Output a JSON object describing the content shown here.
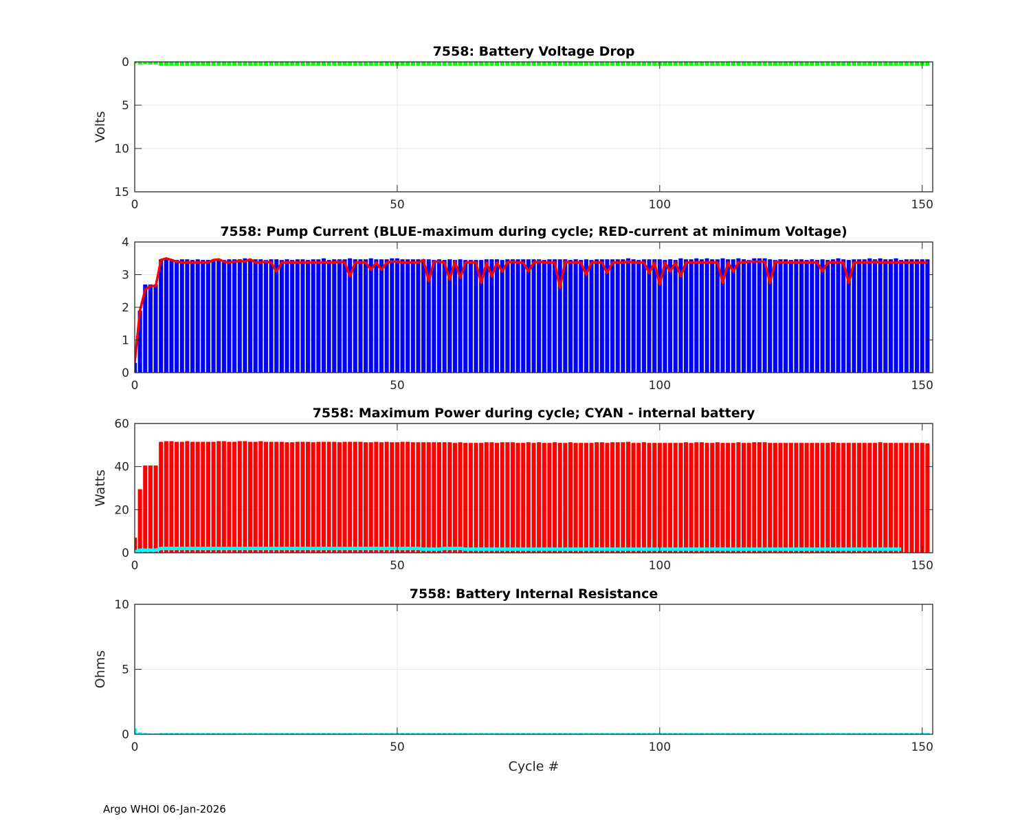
{
  "footer": "Argo WHOI 06-Jan-2026",
  "chart_data": [
    {
      "type": "bar",
      "title": "7558: Battery Voltage Drop",
      "xlabel": "",
      "ylabel": "Volts",
      "xlim": [
        0,
        152
      ],
      "ylim": [
        0,
        15
      ],
      "y_reversed": true,
      "xticks": [
        "0",
        "50",
        "100",
        "150"
      ],
      "yticks": [
        "0",
        "5",
        "10",
        "15"
      ],
      "grid": true,
      "series": [
        {
          "name": "voltage drop",
          "color": "#00ff00",
          "x_start": 0,
          "values": [
            0.2,
            0.3,
            0.25,
            0.3,
            0.3,
            0.45,
            0.45,
            0.45,
            0.45,
            0.45,
            0.45,
            0.45,
            0.45,
            0.45,
            0.45,
            0.45,
            0.45,
            0.45,
            0.45,
            0.45,
            0.45,
            0.45,
            0.45,
            0.45,
            0.45,
            0.45,
            0.45,
            0.45,
            0.45,
            0.45,
            0.45,
            0.45,
            0.45,
            0.45,
            0.45,
            0.45,
            0.45,
            0.45,
            0.45,
            0.45,
            0.45,
            0.45,
            0.45,
            0.45,
            0.45,
            0.45,
            0.45,
            0.45,
            0.45,
            0.45,
            0.45,
            0.45,
            0.45,
            0.45,
            0.45,
            0.45,
            0.45,
            0.45,
            0.45,
            0.45,
            0.45,
            0.45,
            0.45,
            0.45,
            0.45,
            0.45,
            0.45,
            0.45,
            0.45,
            0.45,
            0.45,
            0.45,
            0.45,
            0.45,
            0.45,
            0.45,
            0.45,
            0.45,
            0.45,
            0.45,
            0.45,
            0.45,
            0.45,
            0.45,
            0.45,
            0.45,
            0.45,
            0.45,
            0.45,
            0.45,
            0.45,
            0.45,
            0.45,
            0.45,
            0.45,
            0.45,
            0.45,
            0.45,
            0.45,
            0.45,
            0.45,
            0.45,
            0.45,
            0.45,
            0.45,
            0.45,
            0.45,
            0.45,
            0.45,
            0.45,
            0.45,
            0.45,
            0.45,
            0.45,
            0.45,
            0.45,
            0.45,
            0.45,
            0.45,
            0.45,
            0.45,
            0.45,
            0.45,
            0.45,
            0.45,
            0.45,
            0.45,
            0.45,
            0.45,
            0.45,
            0.45,
            0.45,
            0.45,
            0.45,
            0.45,
            0.45,
            0.45,
            0.45,
            0.45,
            0.45,
            0.45,
            0.45,
            0.45,
            0.45,
            0.45,
            0.45,
            0.45,
            0.45,
            0.45,
            0.45,
            0.45,
            0.45
          ]
        }
      ]
    },
    {
      "type": "bar",
      "title": "7558: Pump Current (BLUE-maximum during cycle; RED-current at minimum Voltage)",
      "xlabel": "",
      "ylabel": "",
      "xlim": [
        0,
        152
      ],
      "ylim": [
        0,
        4
      ],
      "xticks": [
        "0",
        "50",
        "100",
        "150"
      ],
      "yticks": [
        "0",
        "1",
        "2",
        "3",
        "4"
      ],
      "grid": true,
      "series": [
        {
          "name": "maximum during cycle",
          "kind": "bar",
          "color": "#0000ff",
          "x_start": 0,
          "values": [
            0.3,
            1.9,
            2.7,
            2.7,
            2.7,
            3.47,
            3.5,
            3.47,
            3.45,
            3.47,
            3.47,
            3.45,
            3.47,
            3.45,
            3.45,
            3.47,
            3.47,
            3.45,
            3.47,
            3.47,
            3.47,
            3.5,
            3.47,
            3.47,
            3.47,
            3.45,
            3.47,
            3.47,
            3.45,
            3.47,
            3.45,
            3.47,
            3.47,
            3.45,
            3.47,
            3.47,
            3.5,
            3.45,
            3.47,
            3.47,
            3.47,
            3.5,
            3.47,
            3.47,
            3.47,
            3.5,
            3.47,
            3.47,
            3.47,
            3.5,
            3.5,
            3.47,
            3.47,
            3.47,
            3.47,
            3.47,
            3.47,
            3.45,
            3.47,
            3.45,
            3.47,
            3.45,
            3.47,
            3.45,
            3.45,
            3.45,
            3.45,
            3.47,
            3.47,
            3.47,
            3.45,
            3.47,
            3.47,
            3.47,
            3.47,
            3.47,
            3.47,
            3.47,
            3.45,
            3.47,
            3.47,
            3.47,
            3.47,
            3.45,
            3.47,
            3.45,
            3.47,
            3.45,
            3.47,
            3.47,
            3.47,
            3.47,
            3.47,
            3.47,
            3.5,
            3.47,
            3.45,
            3.47,
            3.47,
            3.47,
            3.47,
            3.45,
            3.47,
            3.45,
            3.5,
            3.47,
            3.47,
            3.5,
            3.47,
            3.5,
            3.47,
            3.47,
            3.5,
            3.47,
            3.47,
            3.5,
            3.47,
            3.45,
            3.5,
            3.5,
            3.5,
            3.47,
            3.45,
            3.47,
            3.47,
            3.45,
            3.47,
            3.47,
            3.45,
            3.47,
            3.45,
            3.47,
            3.45,
            3.47,
            3.5,
            3.47,
            3.45,
            3.47,
            3.47,
            3.47,
            3.5,
            3.47,
            3.5,
            3.47,
            3.47,
            3.5,
            3.45,
            3.47,
            3.47,
            3.47,
            3.47,
            3.47
          ]
        },
        {
          "name": "current at minimum voltage",
          "kind": "line",
          "color": "#ff0000",
          "x_start": 0,
          "values": [
            0.3,
            1.9,
            2.55,
            2.65,
            2.65,
            3.45,
            3.5,
            3.45,
            3.4,
            3.37,
            3.37,
            3.37,
            3.37,
            3.37,
            3.37,
            3.45,
            3.47,
            3.4,
            3.37,
            3.4,
            3.42,
            3.4,
            3.47,
            3.37,
            3.37,
            3.4,
            3.37,
            3.1,
            3.37,
            3.37,
            3.37,
            3.37,
            3.37,
            3.37,
            3.37,
            3.37,
            3.37,
            3.37,
            3.37,
            3.4,
            3.37,
            2.95,
            3.37,
            3.37,
            3.37,
            3.15,
            3.37,
            3.15,
            3.37,
            3.4,
            3.4,
            3.37,
            3.37,
            3.37,
            3.37,
            3.45,
            2.8,
            3.4,
            3.4,
            3.37,
            2.85,
            3.4,
            2.9,
            3.37,
            3.37,
            3.37,
            2.75,
            3.37,
            2.95,
            3.37,
            3.1,
            3.37,
            3.4,
            3.37,
            3.37,
            3.1,
            3.37,
            3.4,
            3.37,
            3.37,
            3.37,
            2.6,
            3.4,
            3.37,
            3.37,
            3.37,
            3.0,
            3.37,
            3.37,
            3.37,
            3.05,
            3.37,
            3.37,
            3.37,
            3.4,
            3.37,
            3.37,
            3.37,
            3.05,
            3.37,
            2.7,
            3.37,
            3.1,
            3.37,
            2.95,
            3.37,
            3.37,
            3.37,
            3.37,
            3.37,
            3.37,
            3.37,
            2.75,
            3.37,
            3.1,
            3.37,
            3.37,
            3.4,
            3.4,
            3.4,
            3.4,
            2.75,
            3.4,
            3.37,
            3.37,
            3.37,
            3.37,
            3.37,
            3.37,
            3.37,
            3.37,
            3.1,
            3.37,
            3.37,
            3.37,
            3.37,
            2.75,
            3.37,
            3.37,
            3.37,
            3.37,
            3.4,
            3.37,
            3.37,
            3.37,
            3.37,
            3.37,
            3.37,
            3.37,
            3.37,
            3.37,
            3.37
          ]
        }
      ]
    },
    {
      "type": "bar",
      "title": "7558: Maximum Power during cycle; CYAN - internal battery",
      "xlabel": "",
      "ylabel": "Watts",
      "xlim": [
        0,
        152
      ],
      "ylim": [
        0,
        60
      ],
      "xticks": [
        "0",
        "50",
        "100",
        "150"
      ],
      "yticks": [
        "0",
        "20",
        "40",
        "60"
      ],
      "grid": true,
      "series": [
        {
          "name": "maximum power",
          "kind": "bar",
          "color": "#ff0000",
          "x_start": 0,
          "values": [
            7,
            29.5,
            40.5,
            40.5,
            40.5,
            51.5,
            51.8,
            51.8,
            51.5,
            51.5,
            51.8,
            51.5,
            51.5,
            51.5,
            51.5,
            51.5,
            51.8,
            51.8,
            51.5,
            51.5,
            51.8,
            51.8,
            51.5,
            51.5,
            51.8,
            51.5,
            51.5,
            51.5,
            51.5,
            51.3,
            51.3,
            51.5,
            51.5,
            51.5,
            51.3,
            51.5,
            51.5,
            51.5,
            51.5,
            51.3,
            51.5,
            51.5,
            51.5,
            51.5,
            51.3,
            51.3,
            51.5,
            51.3,
            51.5,
            51.3,
            51.3,
            51.5,
            51.5,
            51.3,
            51.3,
            51.3,
            51.3,
            51.3,
            51.3,
            51.3,
            51.3,
            51.0,
            51.3,
            51.0,
            51.0,
            51.0,
            51.0,
            51.3,
            51.3,
            51.0,
            51.3,
            51.3,
            51.3,
            51.0,
            51.0,
            51.3,
            51.0,
            51.3,
            51.0,
            51.0,
            51.3,
            51.0,
            51.0,
            51.3,
            51.0,
            51.0,
            51.0,
            51.0,
            51.3,
            51.3,
            51.0,
            51.3,
            51.3,
            51.3,
            51.5,
            51.0,
            51.0,
            51.3,
            51.0,
            51.0,
            51.0,
            51.0,
            51.0,
            51.0,
            51.0,
            51.3,
            51.0,
            51.3,
            51.3,
            51.0,
            51.0,
            51.3,
            51.0,
            51.0,
            51.0,
            51.3,
            51.0,
            51.0,
            51.3,
            51.3,
            51.3,
            51.0,
            51.0,
            51.0,
            51.0,
            51.0,
            51.0,
            51.0,
            51.0,
            51.0,
            51.0,
            51.0,
            51.0,
            51.3,
            51.0,
            51.0,
            51.0,
            51.0,
            51.0,
            51.0,
            51.0,
            51.0,
            51.3,
            51.0,
            51.0,
            51.0,
            51.0,
            51.0,
            51.0,
            51.0,
            51.0,
            50.8
          ]
        },
        {
          "name": "internal battery",
          "kind": "line",
          "color": "#00ffff",
          "x_start": 0,
          "values": [
            0.3,
            1.2,
            1.2,
            1.2,
            1.2,
            2.0,
            2.0,
            2.0,
            2.0,
            2.0,
            2.0,
            2.0,
            2.0,
            2.0,
            2.0,
            2.0,
            2.0,
            2.0,
            2.0,
            2.0,
            2.0,
            2.0,
            2.0,
            2.0,
            2.0,
            2.0,
            2.0,
            2.0,
            2.0,
            2.0,
            2.0,
            2.0,
            2.0,
            2.0,
            2.0,
            2.0,
            2.0,
            2.0,
            2.0,
            2.0,
            2.0,
            2.0,
            2.0,
            2.0,
            2.0,
            2.0,
            2.0,
            2.0,
            2.0,
            2.0,
            2.0,
            2.0,
            2.0,
            2.0,
            2.0,
            1.7,
            1.7,
            1.7,
            1.7,
            2.0,
            2.0,
            2.0,
            2.0,
            1.7,
            1.7,
            1.7,
            1.7,
            1.7,
            1.7,
            1.7,
            1.7,
            1.7,
            1.7,
            1.7,
            1.7,
            1.7,
            1.7,
            1.7,
            1.7,
            1.7,
            1.7,
            1.7,
            1.7,
            1.7,
            1.7,
            1.7,
            1.7,
            1.7,
            1.7,
            1.7,
            1.7,
            1.7,
            1.7,
            1.7,
            1.7,
            1.7,
            1.7,
            1.7,
            1.7,
            1.7,
            1.7,
            1.7,
            1.7,
            1.7,
            1.7,
            1.7,
            1.7,
            1.7,
            1.7,
            1.7,
            1.7,
            1.7,
            1.7,
            1.7,
            1.7,
            1.7,
            1.7,
            1.7,
            1.7,
            1.7,
            1.7,
            1.7,
            1.7,
            1.7,
            1.7,
            1.7,
            1.7,
            1.7,
            1.7,
            1.7,
            1.7,
            1.7,
            1.7,
            1.7,
            1.7,
            1.7,
            1.7,
            1.7,
            1.7,
            1.7,
            1.7,
            1.7,
            1.7,
            1.7,
            1.7,
            1.7,
            1.7
          ]
        }
      ]
    },
    {
      "type": "bar",
      "title": "7558: Battery Internal Resistance",
      "xlabel": "Cycle #",
      "ylabel": "Ohms",
      "xlim": [
        0,
        152
      ],
      "ylim": [
        0,
        10
      ],
      "xticks": [
        "0",
        "50",
        "100",
        "150"
      ],
      "yticks": [
        "0",
        "5",
        "10"
      ],
      "grid": true,
      "series": [
        {
          "name": "internal resistance",
          "kind": "bar",
          "color": "#00ffff",
          "x_start": 0,
          "values": [
            0.45,
            0.15,
            0.1,
            0.07,
            0.07,
            0.1,
            0.1,
            0.1,
            0.1,
            0.1,
            0.1,
            0.1,
            0.1,
            0.1,
            0.1,
            0.1,
            0.1,
            0.1,
            0.1,
            0.1,
            0.1,
            0.1,
            0.1,
            0.1,
            0.1,
            0.1,
            0.1,
            0.1,
            0.1,
            0.1,
            0.1,
            0.1,
            0.1,
            0.1,
            0.1,
            0.1,
            0.1,
            0.1,
            0.1,
            0.1,
            0.1,
            0.1,
            0.1,
            0.1,
            0.1,
            0.1,
            0.1,
            0.1,
            0.1,
            0.1,
            0.1,
            0.1,
            0.1,
            0.1,
            0.1,
            0.1,
            0.1,
            0.1,
            0.1,
            0.1,
            0.1,
            0.1,
            0.1,
            0.1,
            0.1,
            0.1,
            0.1,
            0.1,
            0.1,
            0.1,
            0.1,
            0.1,
            0.1,
            0.1,
            0.1,
            0.1,
            0.1,
            0.1,
            0.1,
            0.1,
            0.1,
            0.1,
            0.1,
            0.1,
            0.1,
            0.1,
            0.1,
            0.1,
            0.1,
            0.1,
            0.1,
            0.1,
            0.1,
            0.1,
            0.1,
            0.1,
            0.1,
            0.1,
            0.1,
            0.1,
            0.1,
            0.1,
            0.1,
            0.1,
            0.1,
            0.1,
            0.1,
            0.1,
            0.1,
            0.1,
            0.1,
            0.1,
            0.1,
            0.1,
            0.1,
            0.1,
            0.1,
            0.1,
            0.1,
            0.1,
            0.1,
            0.1,
            0.1,
            0.1,
            0.1,
            0.1,
            0.1,
            0.1,
            0.1,
            0.1,
            0.1,
            0.1,
            0.1,
            0.1,
            0.1,
            0.1,
            0.1,
            0.1,
            0.1,
            0.1,
            0.1,
            0.1,
            0.1,
            0.1,
            0.1,
            0.1,
            0.1,
            0.1,
            0.1,
            0.1,
            0.1,
            0.1
          ]
        }
      ]
    }
  ]
}
